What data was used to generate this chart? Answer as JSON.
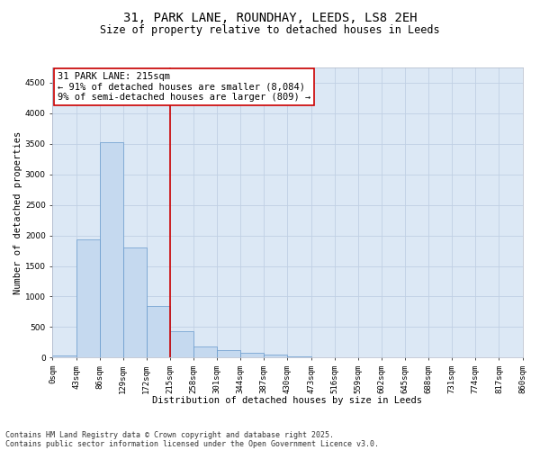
{
  "title_line1": "31, PARK LANE, ROUNDHAY, LEEDS, LS8 2EH",
  "title_line2": "Size of property relative to detached houses in Leeds",
  "xlabel": "Distribution of detached houses by size in Leeds",
  "ylabel": "Number of detached properties",
  "bar_heights": [
    30,
    1930,
    3520,
    1800,
    840,
    430,
    175,
    120,
    80,
    50,
    20,
    5,
    0,
    0,
    0,
    0,
    0,
    0,
    0,
    0
  ],
  "bar_labels": [
    "0sqm",
    "43sqm",
    "86sqm",
    "129sqm",
    "172sqm",
    "215sqm",
    "258sqm",
    "301sqm",
    "344sqm",
    "387sqm",
    "430sqm",
    "473sqm",
    "516sqm",
    "559sqm",
    "602sqm",
    "645sqm",
    "688sqm",
    "731sqm",
    "774sqm",
    "817sqm",
    "860sqm"
  ],
  "bar_color": "#c5d9ef",
  "bar_edge_color": "#6699cc",
  "vline_index": 5,
  "vline_color": "#cc0000",
  "annotation_title": "31 PARK LANE: 215sqm",
  "annotation_line1": "← 91% of detached houses are smaller (8,084)",
  "annotation_line2": "9% of semi-detached houses are larger (809) →",
  "annotation_box_facecolor": "#ffffff",
  "annotation_box_edgecolor": "#cc0000",
  "ylim": [
    0,
    4750
  ],
  "yticks": [
    0,
    500,
    1000,
    1500,
    2000,
    2500,
    3000,
    3500,
    4000,
    4500
  ],
  "grid_color": "#c0d0e4",
  "plot_bg_color": "#dce8f5",
  "fig_bg_color": "#ffffff",
  "title_fontsize": 10,
  "subtitle_fontsize": 8.5,
  "axis_label_fontsize": 7.5,
  "tick_fontsize": 6.5,
  "annotation_fontsize": 7.5,
  "footer_fontsize": 6,
  "footer_line1": "Contains HM Land Registry data © Crown copyright and database right 2025.",
  "footer_line2": "Contains public sector information licensed under the Open Government Licence v3.0."
}
